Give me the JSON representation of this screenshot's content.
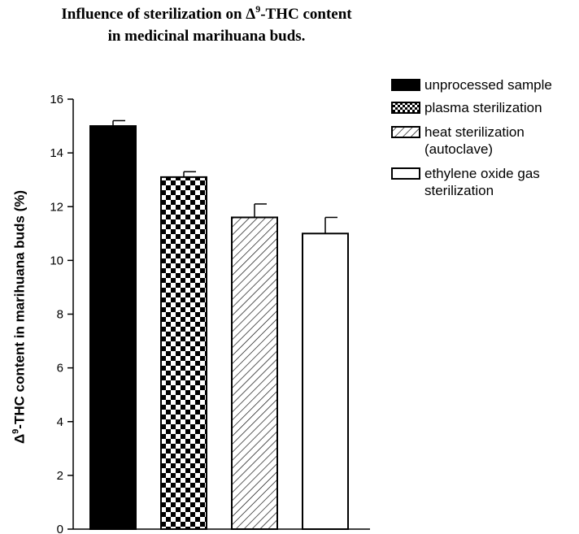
{
  "title": {
    "line1_before": "Influence of sterilization on Δ",
    "line1_sup": "9",
    "line1_after": "-THC content",
    "line2": "in medicinal marihuana buds."
  },
  "ylabel": {
    "before": "Δ",
    "sup": "9",
    "after": "-THC content in marihuana buds (%)"
  },
  "chart_data": {
    "type": "bar",
    "categories": [
      "unprocessed sample",
      "plasma sterilization",
      "heat sterilization (autoclave)",
      "ethylene oxide gas sterilization"
    ],
    "values": [
      15.0,
      13.1,
      11.6,
      11.0
    ],
    "errors": [
      0.2,
      0.2,
      0.5,
      0.6
    ],
    "patterns": [
      "solid",
      "checker",
      "hatch",
      "empty"
    ],
    "ylim": [
      0,
      16
    ],
    "yticks": [
      "0",
      "2",
      "4",
      "6",
      "8",
      "10",
      "12",
      "14",
      "16"
    ],
    "grid": false,
    "legend": {
      "placement": "top-right",
      "entries": [
        {
          "lines": [
            "unprocessed sample"
          ]
        },
        {
          "lines": [
            "plasma sterilization"
          ]
        },
        {
          "lines": [
            "heat sterilization",
            "(autoclave)"
          ]
        },
        {
          "lines": [
            "ethylene oxide gas",
            "sterilization"
          ]
        }
      ]
    }
  }
}
